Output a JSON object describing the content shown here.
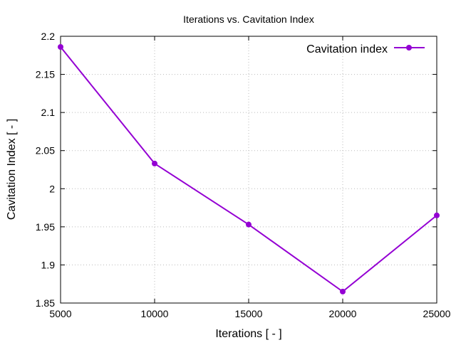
{
  "chart_data": {
    "type": "line",
    "title": "Iterations  vs. Cavitation Index",
    "xlabel": "Iterations [ - ]",
    "ylabel": "Cavitation Index [ - ]",
    "xlim": [
      5000,
      25000
    ],
    "ylim": [
      1.85,
      2.2
    ],
    "xticks": [
      5000,
      10000,
      15000,
      20000,
      25000
    ],
    "xtick_labels": [
      "5000",
      "10000",
      "15000",
      "20000",
      "25000"
    ],
    "yticks": [
      1.85,
      1.9,
      1.95,
      2.0,
      2.05,
      2.1,
      2.15,
      2.2
    ],
    "ytick_labels": [
      "1.85",
      "1.9",
      "1.95",
      "2",
      "2.05",
      "2.1",
      "2.15",
      "2.2"
    ],
    "grid": true,
    "legend_position": "top-right",
    "series": [
      {
        "name": "Cavitation index",
        "color": "#9400d3",
        "x": [
          5000,
          10000,
          15000,
          20000,
          25000
        ],
        "y": [
          2.186,
          2.033,
          1.953,
          1.865,
          1.965
        ]
      }
    ]
  }
}
